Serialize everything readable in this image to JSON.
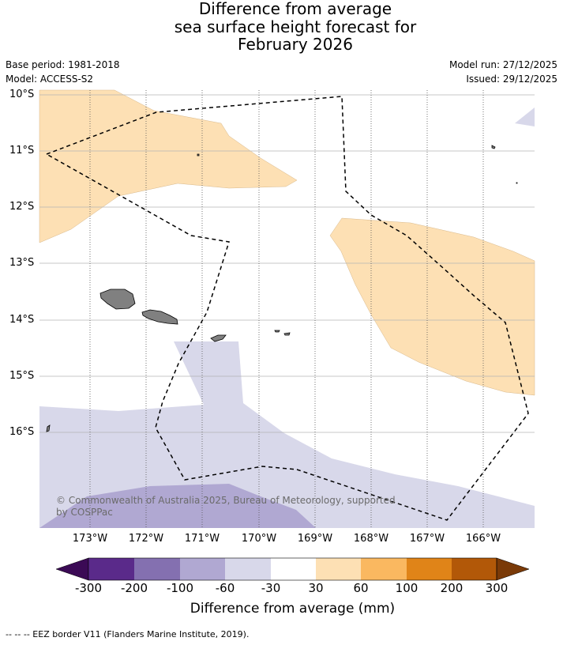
{
  "title": {
    "line1": "Difference from average",
    "line2": "sea surface height forecast for",
    "line3": "February 2026"
  },
  "meta": {
    "base_period": "Base period: 1981-2018",
    "model": "Model: ACCESS-S2",
    "model_run": "Model run: 27/12/2025",
    "issued": "Issued: 29/12/2025"
  },
  "axes": {
    "lat_labels": [
      "10°S",
      "11°S",
      "12°S",
      "13°S",
      "14°S",
      "15°S",
      "16°S"
    ],
    "lon_labels": [
      "173°W",
      "172°W",
      "171°W",
      "170°W",
      "169°W",
      "168°W",
      "167°W",
      "166°W"
    ]
  },
  "colorbar": {
    "title": "Difference from average (mm)",
    "ticks": [
      "-300",
      "-200",
      "-100",
      "-60",
      "-30",
      "30",
      "60",
      "100",
      "200",
      "300"
    ],
    "colors": [
      "#5a2a8a",
      "#8470b0",
      "#b0a8d2",
      "#d8d8ea",
      "#ffffff",
      "#fde0b4",
      "#fab860",
      "#e08418",
      "#b25808"
    ],
    "under_color": "#3b0a55",
    "over_color": "#7a3a08"
  },
  "copyright": {
    "line1": "© Commonwealth of Australia 2025, Bureau of Meteorology, supported",
    "line2": "by COSPPac"
  },
  "footnote": "--  --  -- EEZ border V11 (Flanders Marine Institute, 2019).",
  "colors": {
    "land": "#808080",
    "positive_30_60": "#fde0b4",
    "negative_30_60": "#d8d8ea",
    "negative_60_100": "#b0a8d2"
  }
}
